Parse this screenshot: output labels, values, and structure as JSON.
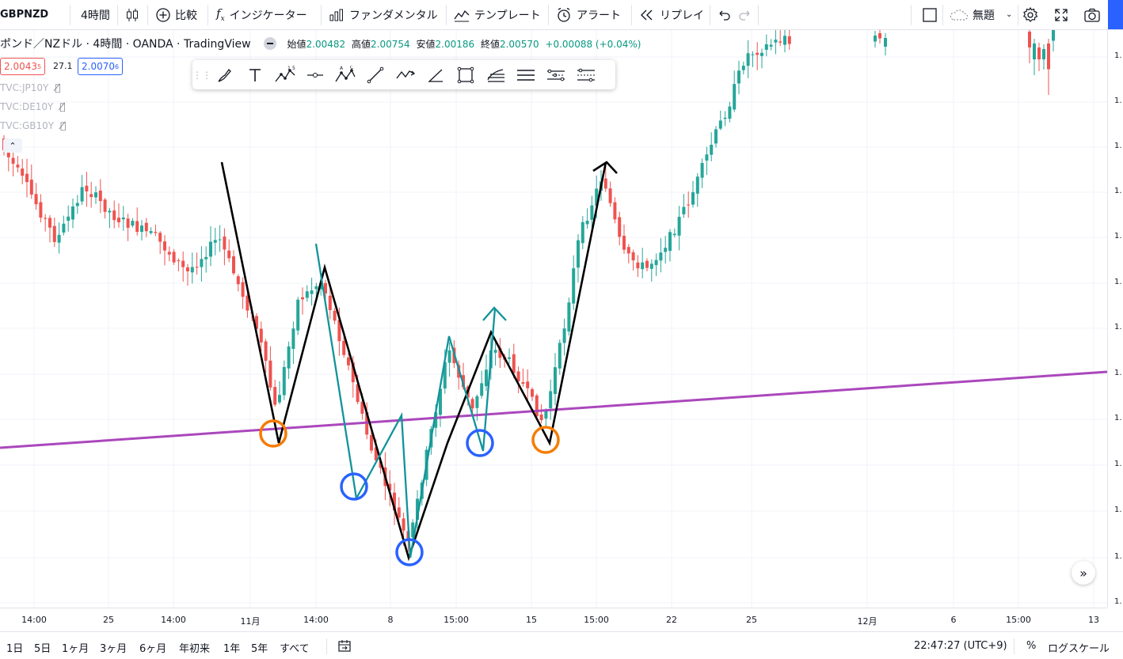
{
  "toolbar": {
    "symbol": "GBPNZD",
    "interval": "4時間",
    "compare": "比較",
    "indicators": "インジケーター",
    "fundamentals": "ファンダメンタル",
    "templates": "テンプレート",
    "alert": "アラート",
    "replay": "リプレイ",
    "layout_name": "無題"
  },
  "legend": {
    "title": "ポンド／NZドル · 4時間 · OANDA · TradingView",
    "open_label": "始値",
    "open": "2.00482",
    "high_label": "高値",
    "high": "2.00754",
    "low_label": "安値",
    "low": "2.00186",
    "close_label": "終値",
    "close": "2.00570",
    "change": "+0.00088 (+0.04%)",
    "bid": "2.0043",
    "bid_sup": "5",
    "spread": "27.1",
    "ask": "2.0070",
    "ask_sup": "6"
  },
  "studies": [
    "TVC:JP10Y",
    "TVC:DE10Y",
    "TVC:GB10Y"
  ],
  "colors": {
    "up": "#26a69a",
    "down": "#ef5350",
    "trendline": "#ab47bc",
    "orange": "#f57c00",
    "blue": "#2962ff",
    "teal": "#12939a",
    "accent": "#2962ff"
  },
  "icons": [
    "candles-icon",
    "plus-circle-icon",
    "fx-icon",
    "bar-chart-icon",
    "template-icon",
    "alarm-icon",
    "replay-icon",
    "undo-icon",
    "redo-icon",
    "fullscreen-icon",
    "gear-icon",
    "camera-icon",
    "cloud-icon",
    "calendar-range-icon"
  ],
  "drawing_tools": [
    "drag-handle",
    "brush-tool",
    "text-tool",
    "elliott-wave-tool",
    "horizontal-ray-tool",
    "abcd-pattern-tool",
    "trend-line-tool",
    "path-tool",
    "angle-tool",
    "rectangle-tool",
    "fib-channel-tool",
    "parallel-lines-tool",
    "flat-top-bottom-tool",
    "disjoint-channel-tool"
  ],
  "xaxis": {
    "ticks": [
      "14:00",
      "25",
      "14:00",
      "11月",
      "14:00",
      "8",
      "15:00",
      "15",
      "15:00",
      "22",
      "25",
      "12月",
      "6",
      "15:00",
      "13"
    ]
  },
  "yaxis": {
    "ticks": [
      "1.",
      "1.",
      "1.",
      "1.",
      "1.",
      "1.",
      "1.",
      "1.",
      "1.",
      "1.",
      "1.",
      "1.",
      "1."
    ]
  },
  "bottom": {
    "ranges": [
      "1日",
      "5日",
      "1ヶ月",
      "3ヶ月",
      "6ヶ月",
      "年初来",
      "1年",
      "5年",
      "すべて"
    ],
    "time": "22:47:27 (UTC+9)",
    "percent": "%",
    "log": "ログスケール"
  },
  "chart_data": {
    "type": "candlestick",
    "symbol": "GBPNZD",
    "timeframe": "4時間"
  }
}
